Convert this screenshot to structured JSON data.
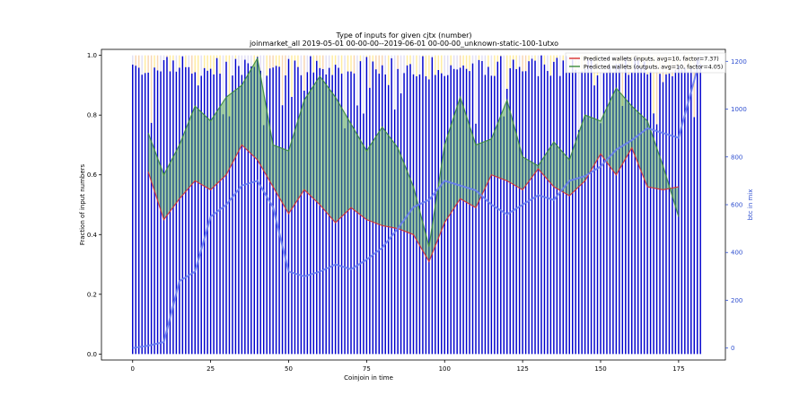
{
  "chart_data": {
    "type": "bar",
    "title": "Type of inputs for given cjtx (number)",
    "subtitle": "joinmarket_all 2019-05-01 00-00-00--2019-06-01 00-00-00_unknown-static-100-1utxo",
    "xlabel": "Coinjoin in time",
    "ylabel": "Fraction of input numbers",
    "y2label": "btc in mix",
    "xlim": [
      -10,
      190
    ],
    "ylim": [
      -0.02,
      1.02
    ],
    "y2lim": [
      -50,
      1250
    ],
    "xticks": [
      0,
      25,
      50,
      75,
      100,
      125,
      150,
      175
    ],
    "yticks": [
      0.0,
      0.2,
      0.4,
      0.6,
      0.8,
      1.0
    ],
    "y2ticks": [
      0,
      200,
      400,
      600,
      800,
      1000,
      1200
    ],
    "grid": false,
    "legend_position": "top-right",
    "legend": [
      "Predicted wallets (inputs, avg=10, factor=7.37)",
      "Predicted wallets (outputs, avg=10, factor=4.05)"
    ],
    "n_coinjoins": 183,
    "bar_series": [
      {
        "role": "fresh inputs (blue)",
        "color": "#0000cc"
      },
      {
        "role": "remixed inputs (light purple)",
        "color": "#d8d4f0"
      },
      {
        "role": "other inputs (yellow)",
        "color": "#ffe680"
      },
      {
        "role": "other inputs (orange)",
        "color": "#f5c89a"
      }
    ],
    "series": [
      {
        "name": "Predicted wallets (inputs, avg=10, factor=7.37)",
        "color": "#d93030",
        "x": [
          5,
          10,
          15,
          20,
          25,
          30,
          35,
          40,
          45,
          50,
          55,
          60,
          65,
          70,
          75,
          80,
          85,
          90,
          95,
          100,
          105,
          110,
          115,
          120,
          125,
          130,
          135,
          140,
          145,
          150,
          155,
          160,
          165,
          170,
          175
        ],
        "values": [
          0.61,
          0.45,
          0.52,
          0.58,
          0.55,
          0.6,
          0.7,
          0.65,
          0.56,
          0.47,
          0.55,
          0.5,
          0.44,
          0.49,
          0.45,
          0.43,
          0.42,
          0.4,
          0.31,
          0.44,
          0.52,
          0.49,
          0.6,
          0.58,
          0.55,
          0.62,
          0.56,
          0.53,
          0.58,
          0.67,
          0.6,
          0.69,
          0.56,
          0.55,
          0.56
        ]
      },
      {
        "name": "Predicted wallets (outputs, avg=10, factor=4.05)",
        "color": "#3c8c3c",
        "x": [
          5,
          10,
          15,
          20,
          25,
          30,
          35,
          40,
          45,
          50,
          55,
          60,
          65,
          70,
          75,
          80,
          85,
          90,
          95,
          100,
          105,
          110,
          115,
          120,
          125,
          130,
          135,
          140,
          145,
          150,
          155,
          160,
          165,
          170,
          175
        ],
        "values": [
          0.74,
          0.6,
          0.7,
          0.83,
          0.78,
          0.86,
          0.9,
          0.99,
          0.7,
          0.68,
          0.85,
          0.93,
          0.86,
          0.77,
          0.68,
          0.76,
          0.69,
          0.56,
          0.36,
          0.7,
          0.86,
          0.7,
          0.72,
          0.85,
          0.66,
          0.63,
          0.71,
          0.65,
          0.8,
          0.78,
          0.89,
          0.83,
          0.78,
          0.63,
          0.46
        ]
      },
      {
        "name": "",
        "axis": "right",
        "color": "#6a7ff0",
        "x": [
          0,
          5,
          10,
          15,
          20,
          25,
          30,
          35,
          40,
          45,
          50,
          55,
          60,
          65,
          70,
          75,
          80,
          85,
          90,
          95,
          100,
          105,
          110,
          115,
          120,
          125,
          130,
          135,
          140,
          145,
          150,
          155,
          160,
          165,
          170,
          175,
          180,
          182
        ],
        "values": [
          0,
          10,
          25,
          280,
          320,
          550,
          600,
          680,
          700,
          590,
          320,
          300,
          320,
          350,
          330,
          370,
          420,
          500,
          590,
          620,
          700,
          680,
          660,
          600,
          560,
          600,
          640,
          620,
          700,
          720,
          760,
          830,
          870,
          920,
          900,
          880,
          1120,
          1220
        ]
      }
    ]
  }
}
